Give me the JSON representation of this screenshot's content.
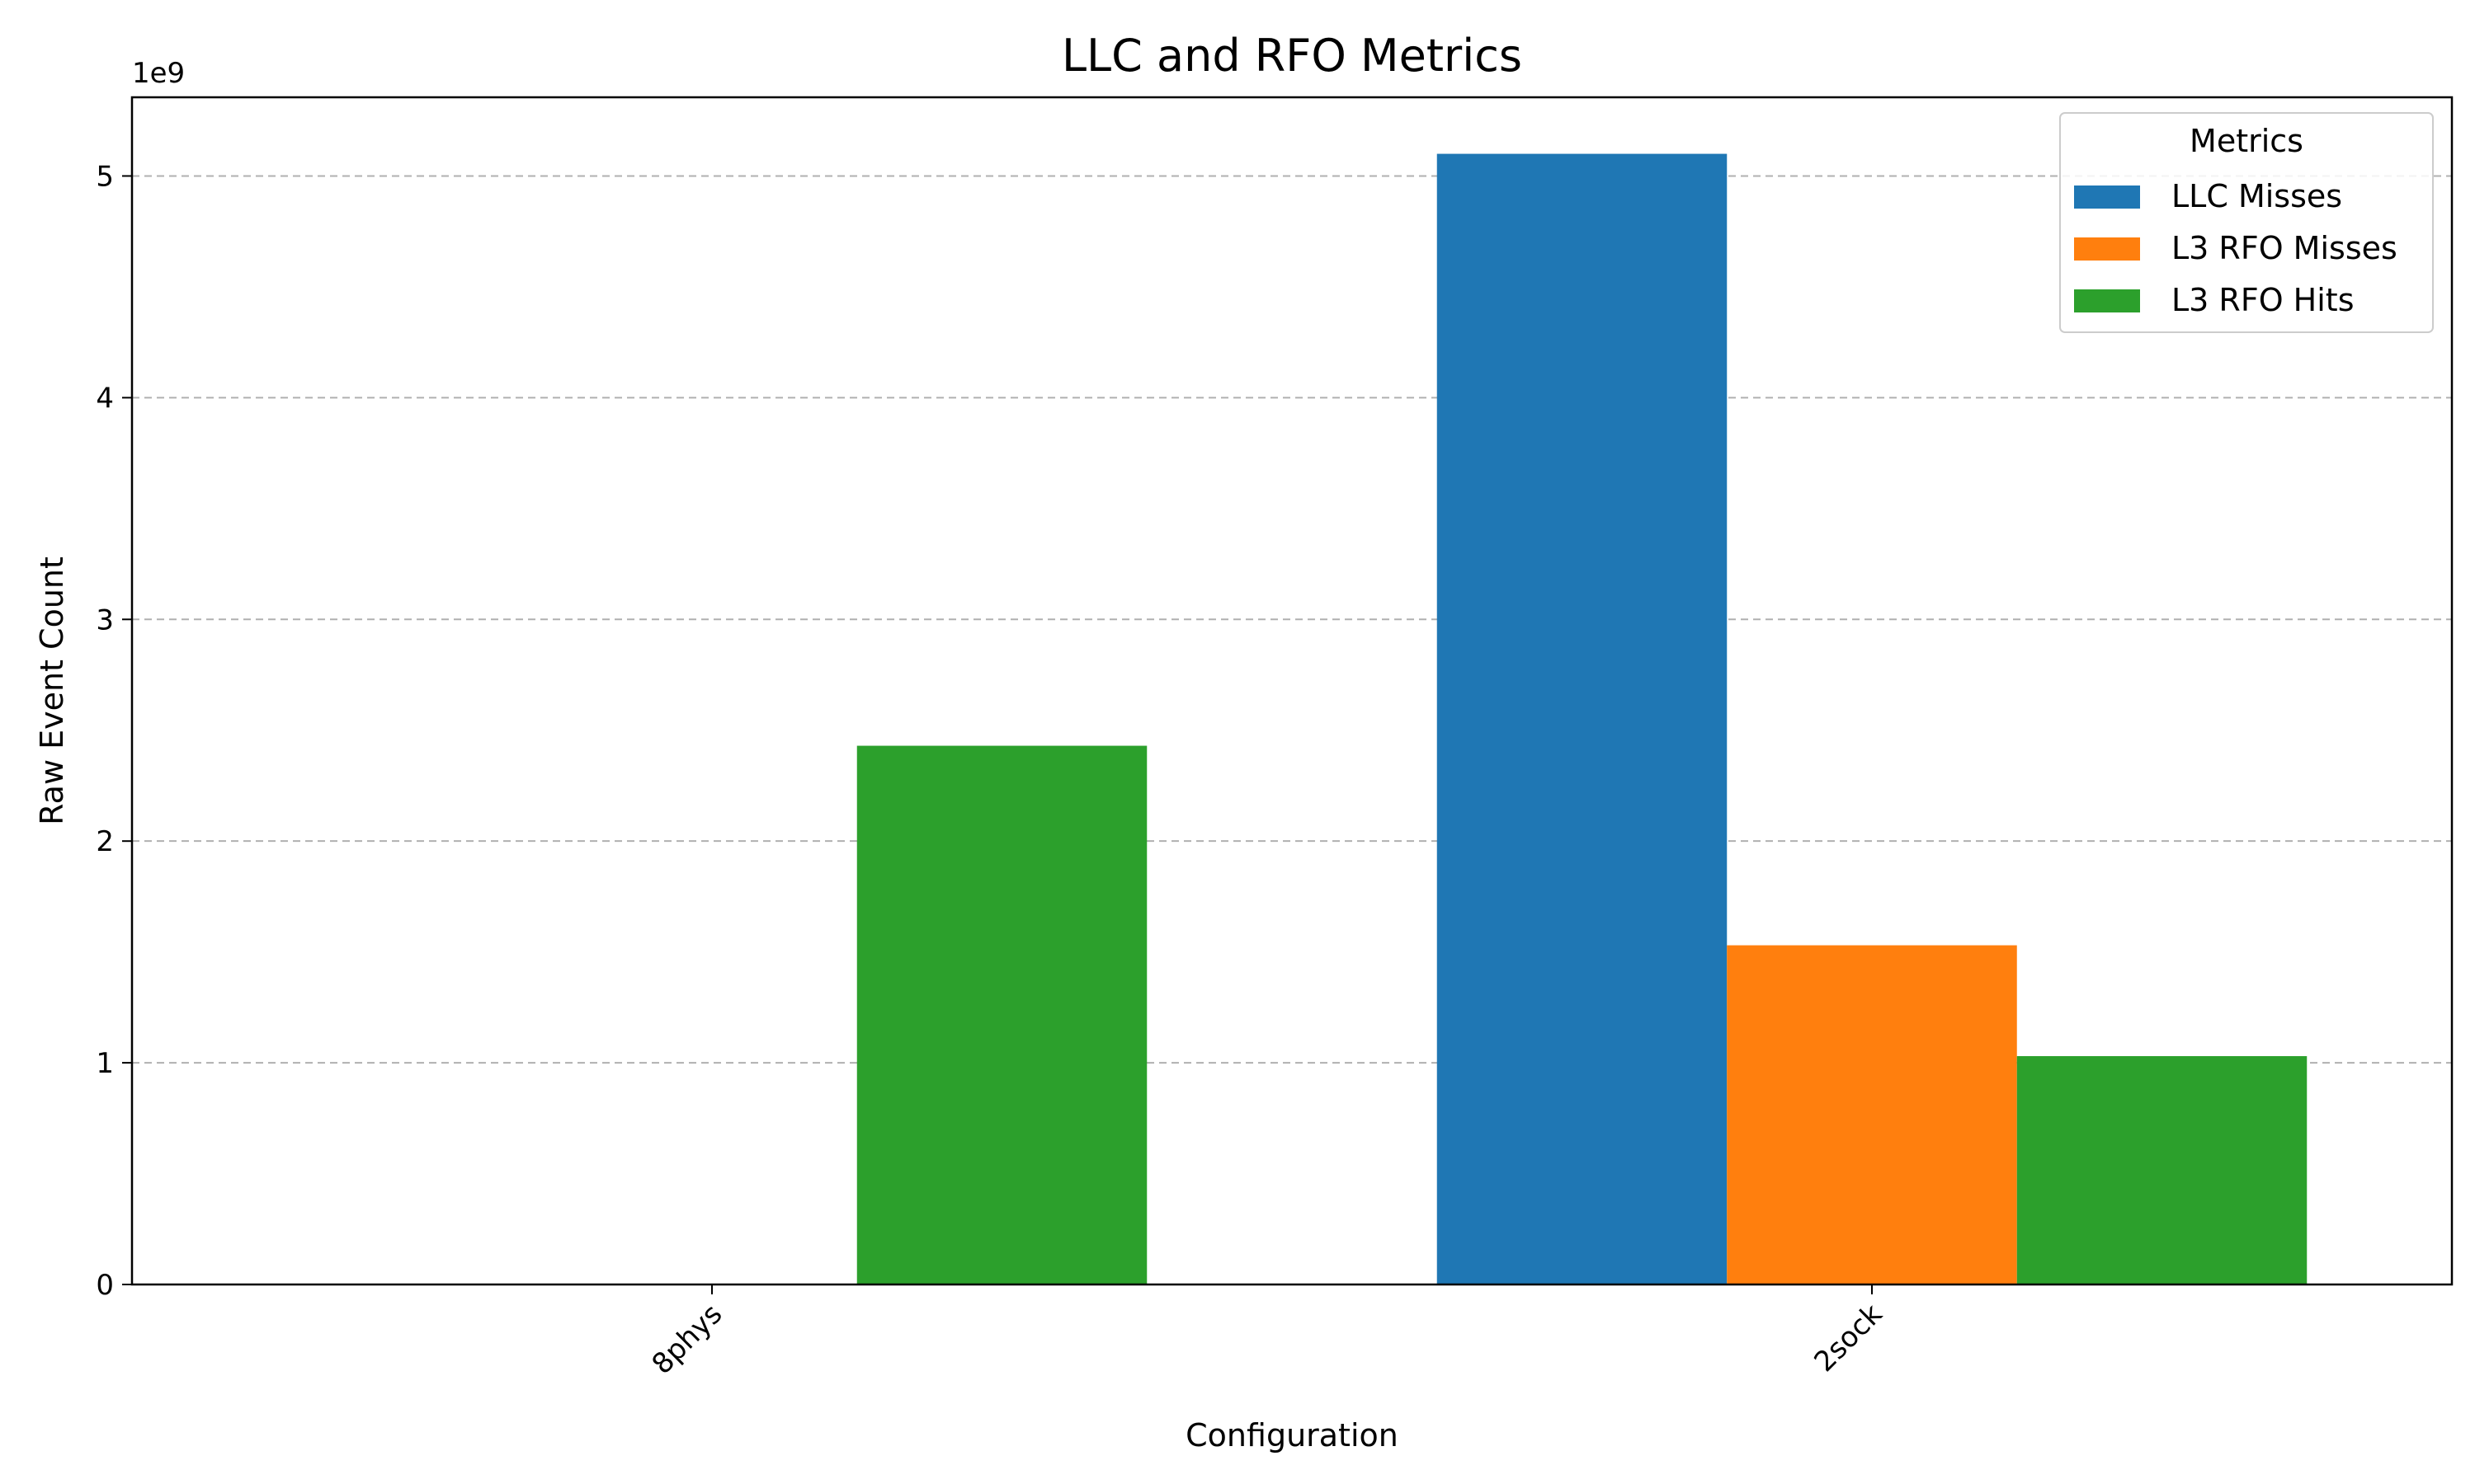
{
  "chart_data": {
    "type": "bar",
    "title": "LLC and RFO Metrics",
    "xlabel": "Configuration",
    "ylabel": "Raw Event Count",
    "y_offset_label": "1e9",
    "y_scale": 1000000000,
    "categories": [
      "8phys",
      "2sock"
    ],
    "series": [
      {
        "name": "LLC Misses",
        "color": "#1f77b4",
        "values": [
          0,
          5100000000
        ]
      },
      {
        "name": "L3 RFO Misses",
        "color": "#ff7f0e",
        "values": [
          0,
          1530000000
        ]
      },
      {
        "name": "L3 RFO Hits",
        "color": "#2ca02c",
        "values": [
          2430000000,
          1030000000
        ]
      }
    ],
    "ylim": [
      0,
      5355000000
    ],
    "yticks": [
      0,
      1,
      2,
      3,
      4,
      5
    ],
    "grid": "y-dashed",
    "legend": {
      "title": "Metrics",
      "placement": "top-right"
    },
    "x_tick_rotation": 45
  }
}
